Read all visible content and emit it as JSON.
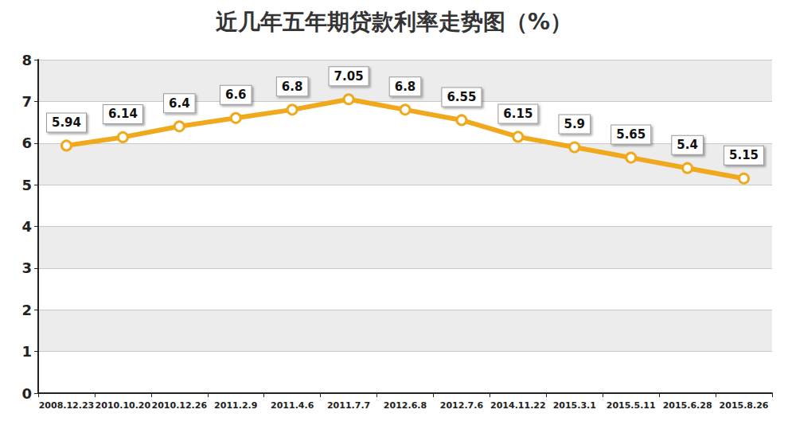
{
  "chart_data": {
    "type": "line",
    "title": "近几年五年期贷款利率走势图（%）",
    "categories": [
      "2008.12.23",
      "2010.10.20",
      "2010.12.26",
      "2011.2.9",
      "2011.4.6",
      "2011.7.7",
      "2012.6.8",
      "2012.7.6",
      "2014.11.22",
      "2015.3.1",
      "2015.5.11",
      "2015.6.28",
      "2015.8.26"
    ],
    "values": [
      5.94,
      6.14,
      6.4,
      6.6,
      6.8,
      7.05,
      6.8,
      6.55,
      6.15,
      5.9,
      5.65,
      5.4,
      5.15
    ],
    "color": "#f0a81c",
    "marker": "circle",
    "ylim": [
      0,
      8
    ],
    "yticks": [
      0,
      1,
      2,
      3,
      4,
      5,
      6,
      7,
      8
    ],
    "grid": true,
    "data_labels": true
  }
}
